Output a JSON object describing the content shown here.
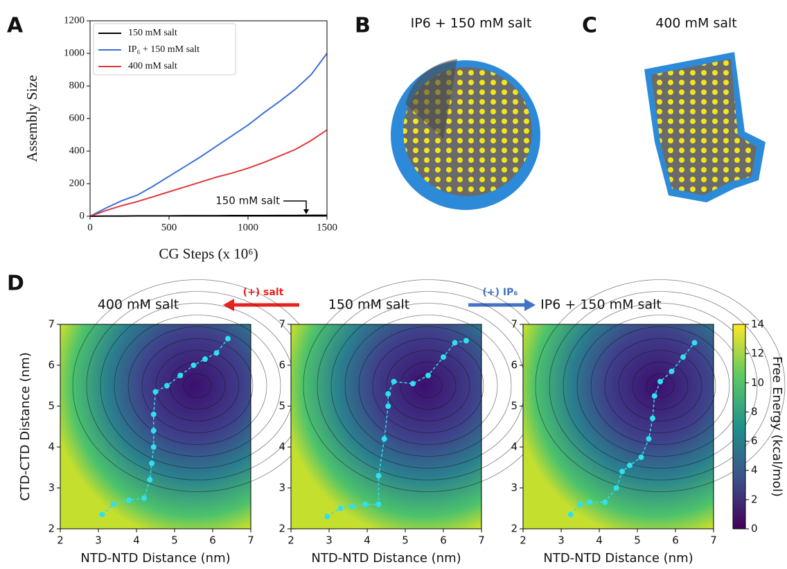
{
  "panels": [
    "A",
    "B",
    "C",
    "D"
  ],
  "images": [
    {
      "title": "IP6 + 150 mM salt"
    },
    {
      "title": "400 mM salt"
    }
  ],
  "arrows": [
    {
      "label": "(+) salt"
    },
    {
      "label": "(+) IP₆"
    }
  ],
  "chart_data": [
    {
      "type": "line",
      "xlabel": "CG Steps (x 10⁶)",
      "ylabel": "Assembly Size",
      "x": [
        0,
        100,
        200,
        300,
        400,
        500,
        600,
        700,
        800,
        900,
        1000,
        1100,
        1200,
        1300,
        1400,
        1500
      ],
      "series": [
        {
          "name": "150 mM salt",
          "color": "#000000",
          "values": [
            0,
            1,
            1,
            2,
            2,
            2,
            3,
            3,
            3,
            4,
            4,
            4,
            5,
            5,
            6,
            6
          ]
        },
        {
          "name": "IP₆ + 150 mM salt",
          "color": "#3b6fd8",
          "values": [
            0,
            50,
            95,
            130,
            185,
            245,
            305,
            365,
            430,
            495,
            560,
            635,
            705,
            780,
            870,
            1000
          ]
        },
        {
          "name": "400 mM salt",
          "color": "#e0383a",
          "values": [
            0,
            35,
            65,
            90,
            120,
            150,
            180,
            210,
            240,
            265,
            295,
            330,
            370,
            410,
            465,
            530
          ]
        }
      ],
      "annotation": "150 mM salt",
      "xlim": [
        0,
        1500
      ],
      "xticks": [
        0,
        500,
        1000,
        1500
      ],
      "ylim": [
        0,
        1200
      ],
      "yticks": [
        0,
        200,
        400,
        600,
        800,
        1000,
        1200
      ]
    },
    {
      "type": "path",
      "title": "400 mM salt",
      "xlabel": "NTD-NTD Distance (nm)",
      "ylabel": "CTD-CTD Distance (nm)",
      "color": "#2fe0f0",
      "x": [
        3.1,
        3.4,
        3.8,
        4.2,
        4.35,
        4.4,
        4.45,
        4.45,
        4.45,
        4.5,
        4.8,
        5.15,
        5.5,
        5.8,
        6.1,
        6.4
      ],
      "values": [
        2.35,
        2.6,
        2.7,
        2.75,
        3.2,
        3.6,
        4.0,
        4.4,
        4.8,
        5.35,
        5.5,
        5.75,
        6.0,
        6.15,
        6.3,
        6.65
      ],
      "xlim": [
        2,
        7
      ],
      "xticks": [
        2,
        3,
        4,
        5,
        6,
        7
      ],
      "ylim": [
        2,
        7
      ],
      "yticks": [
        2,
        3,
        4,
        5,
        6,
        7
      ]
    },
    {
      "type": "path",
      "title": "150 mM salt",
      "xlabel": "NTD-NTD Distance (nm)",
      "color": "#2fe0f0",
      "x": [
        2.95,
        3.3,
        3.6,
        3.95,
        4.3,
        4.3,
        4.45,
        4.55,
        4.55,
        4.7,
        5.2,
        5.6,
        6.0,
        6.3,
        6.6
      ],
      "values": [
        2.3,
        2.5,
        2.55,
        2.6,
        2.6,
        3.3,
        4.2,
        5.0,
        5.3,
        5.6,
        5.55,
        5.75,
        6.2,
        6.55,
        6.6
      ],
      "xlim": [
        2,
        7
      ],
      "xticks": [
        2,
        3,
        4,
        5,
        6,
        7
      ],
      "ylim": [
        2,
        7
      ],
      "yticks": [
        2,
        3,
        4,
        5,
        6,
        7
      ]
    },
    {
      "type": "path",
      "title": "IP6 + 150 mM salt",
      "xlabel": "NTD-NTD Distance (nm)",
      "color": "#2fe0f0",
      "x": [
        3.25,
        3.5,
        3.75,
        4.15,
        4.45,
        4.6,
        4.8,
        5.1,
        5.3,
        5.4,
        5.45,
        5.6,
        5.9,
        6.2,
        6.5
      ],
      "values": [
        2.35,
        2.6,
        2.65,
        2.65,
        3.0,
        3.4,
        3.55,
        3.75,
        4.2,
        4.7,
        5.25,
        5.6,
        5.85,
        6.2,
        6.55
      ],
      "xlim": [
        2,
        7
      ],
      "xticks": [
        2,
        3,
        4,
        5,
        6,
        7
      ],
      "ylim": [
        2,
        7
      ],
      "yticks": [
        2,
        3,
        4,
        5,
        6,
        7
      ]
    },
    {
      "type": "colorbar",
      "label": "Free Energy (kcal/mol)",
      "colormap": "viridis",
      "ylim": [
        0,
        14
      ],
      "yticks": [
        0,
        2,
        4,
        6,
        8,
        10,
        12,
        14
      ]
    }
  ]
}
